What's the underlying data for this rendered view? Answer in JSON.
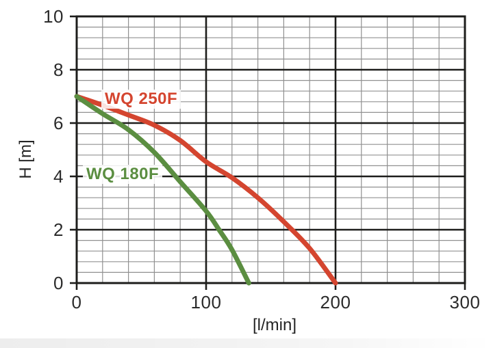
{
  "page": {
    "background_color": "#ffffff"
  },
  "chart_data": {
    "type": "line",
    "title": "",
    "xlabel": "[l/min]",
    "ylabel": "H [m]",
    "xlim": [
      0,
      300
    ],
    "ylim": [
      0,
      10
    ],
    "x_major_step": 100,
    "x_minor_step": 20,
    "y_major_step": 2,
    "y_minor_step": 0.4,
    "grid": "major+minor",
    "legend_position": "inline-curve-labels",
    "x_ticks": [
      "0",
      "100",
      "200",
      "300"
    ],
    "y_ticks": [
      "10",
      "8",
      "6",
      "4",
      "2",
      "0"
    ],
    "series": [
      {
        "name": "WQ 250F",
        "color": "#d4452f",
        "points": [
          [
            0,
            7.0
          ],
          [
            20,
            6.67
          ],
          [
            40,
            6.3
          ],
          [
            60,
            5.92
          ],
          [
            80,
            5.35
          ],
          [
            100,
            4.55
          ],
          [
            120,
            3.95
          ],
          [
            140,
            3.2
          ],
          [
            160,
            2.3
          ],
          [
            180,
            1.3
          ],
          [
            200,
            0
          ]
        ]
      },
      {
        "name": "WQ 180F",
        "color": "#5b8e41",
        "points": [
          [
            0,
            7.0
          ],
          [
            20,
            6.35
          ],
          [
            40,
            5.75
          ],
          [
            60,
            4.9
          ],
          [
            80,
            3.8
          ],
          [
            100,
            2.7
          ],
          [
            110,
            2.0
          ],
          [
            120,
            1.25
          ],
          [
            133,
            0
          ]
        ]
      }
    ],
    "colors": {
      "frame_and_major_grid": "#1d1d1b",
      "minor_grid": "#909090",
      "tick_label": "#2b2b2b"
    }
  }
}
